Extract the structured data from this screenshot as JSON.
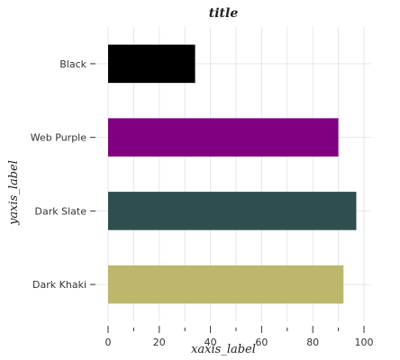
{
  "chart_data": {
    "type": "bar",
    "orientation": "horizontal",
    "title": "title",
    "xlabel": "xaxis_label",
    "ylabel": "yaxis_label",
    "categories": [
      "Dark Khaki",
      "Dark Slate",
      "Web Purple",
      "Black"
    ],
    "values": [
      92,
      97,
      90,
      34
    ],
    "colors": [
      "#bdb76b",
      "#2f4f4f",
      "#800080",
      "#000000"
    ],
    "xlim": [
      0,
      100
    ],
    "xticks": [
      0,
      20,
      40,
      60,
      80,
      100
    ],
    "grid": true
  }
}
